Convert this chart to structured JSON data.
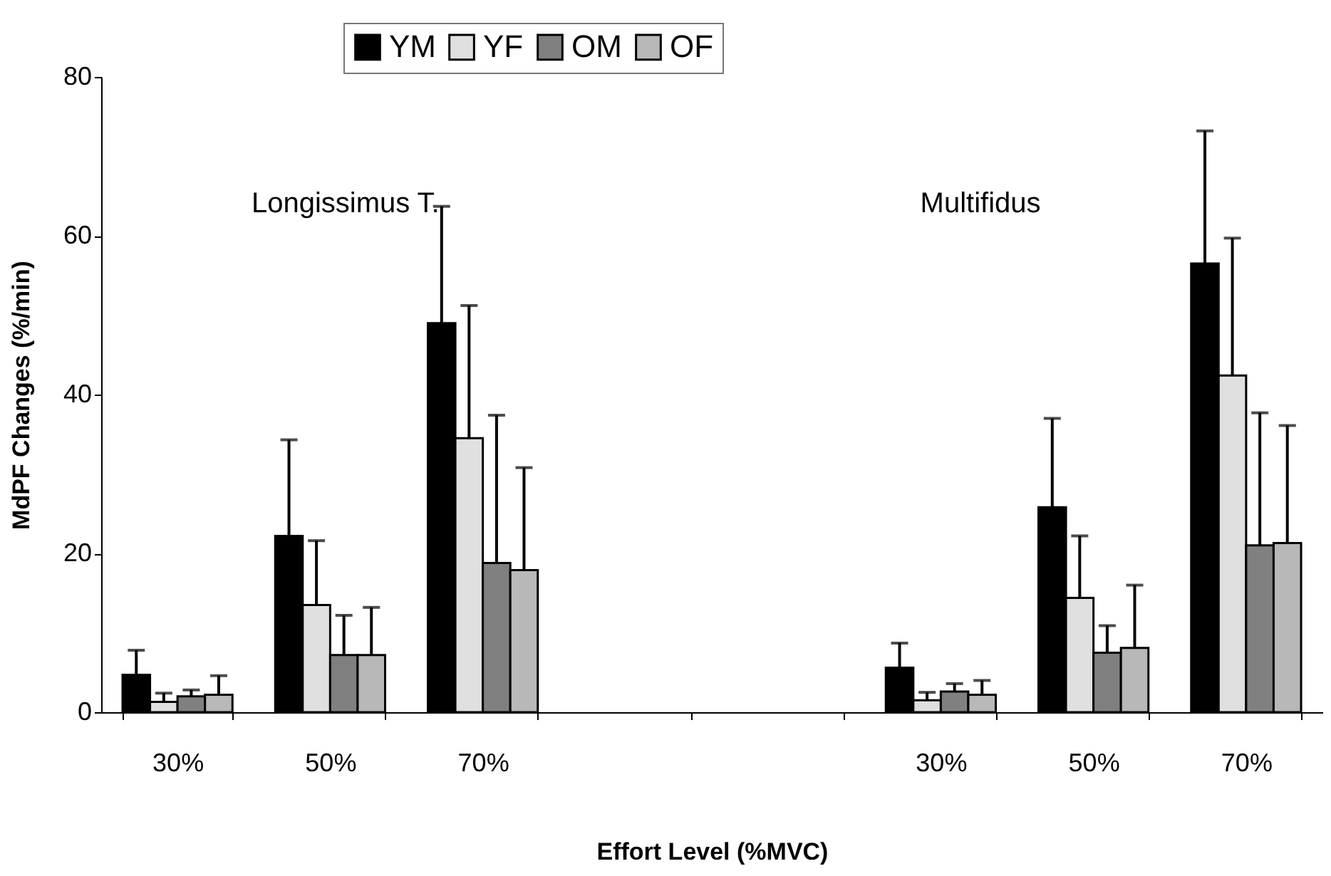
{
  "chart_data": {
    "type": "bar",
    "xlabel": "Effort Level (%MVC)",
    "ylabel": "MdPF Changes (%/min)",
    "annotations": [
      "Longissimus T.",
      "Multifidus"
    ],
    "categories": [
      "30%",
      "50%",
      "70%",
      null,
      null,
      "30%",
      "50%",
      "70%"
    ],
    "series": [
      {
        "name": "YM",
        "color": "#000000",
        "values": [
          4.7,
          22.2,
          49,
          null,
          null,
          5.6,
          25.8,
          56.5
        ],
        "errors": [
          [
            4.7,
            7.8
          ],
          [
            22.2,
            34.3
          ],
          [
            49,
            63.7
          ],
          null,
          null,
          [
            5.6,
            8.7
          ],
          [
            25.8,
            37
          ],
          [
            56.5,
            73.2
          ]
        ]
      },
      {
        "name": "YF",
        "color": "#e0e0e0",
        "values": [
          1.3,
          13.5,
          34.5,
          null,
          null,
          1.5,
          14.4,
          42.4
        ],
        "errors": [
          [
            1.3,
            2.4
          ],
          [
            13.5,
            21.6
          ],
          [
            34.5,
            51.2
          ],
          null,
          null,
          [
            1.5,
            2.5
          ],
          [
            14.4,
            22.2
          ],
          [
            42.4,
            59.7
          ]
        ]
      },
      {
        "name": "OM",
        "color": "#808080",
        "values": [
          2,
          7.2,
          18.8,
          null,
          null,
          2.6,
          7.5,
          21
        ],
        "errors": [
          [
            2,
            2.8
          ],
          [
            7.2,
            12.2
          ],
          [
            18.8,
            37.4
          ],
          null,
          null,
          [
            2.6,
            3.6
          ],
          [
            7.5,
            10.9
          ],
          [
            21,
            37.7
          ]
        ]
      },
      {
        "name": "OF",
        "color": "#b8b8b8",
        "values": [
          2.2,
          7.2,
          17.9,
          null,
          null,
          2.2,
          8.1,
          21.3
        ],
        "errors": [
          [
            2.2,
            4.6
          ],
          [
            7.2,
            13.2
          ],
          [
            17.9,
            30.8
          ],
          null,
          null,
          [
            2.2,
            4
          ],
          [
            8.1,
            16
          ],
          [
            21.3,
            36.1
          ]
        ]
      }
    ],
    "ylim": [
      0,
      80
    ],
    "yticks": [
      0,
      20,
      40,
      60,
      80
    ],
    "grid": false,
    "legend": "top"
  }
}
